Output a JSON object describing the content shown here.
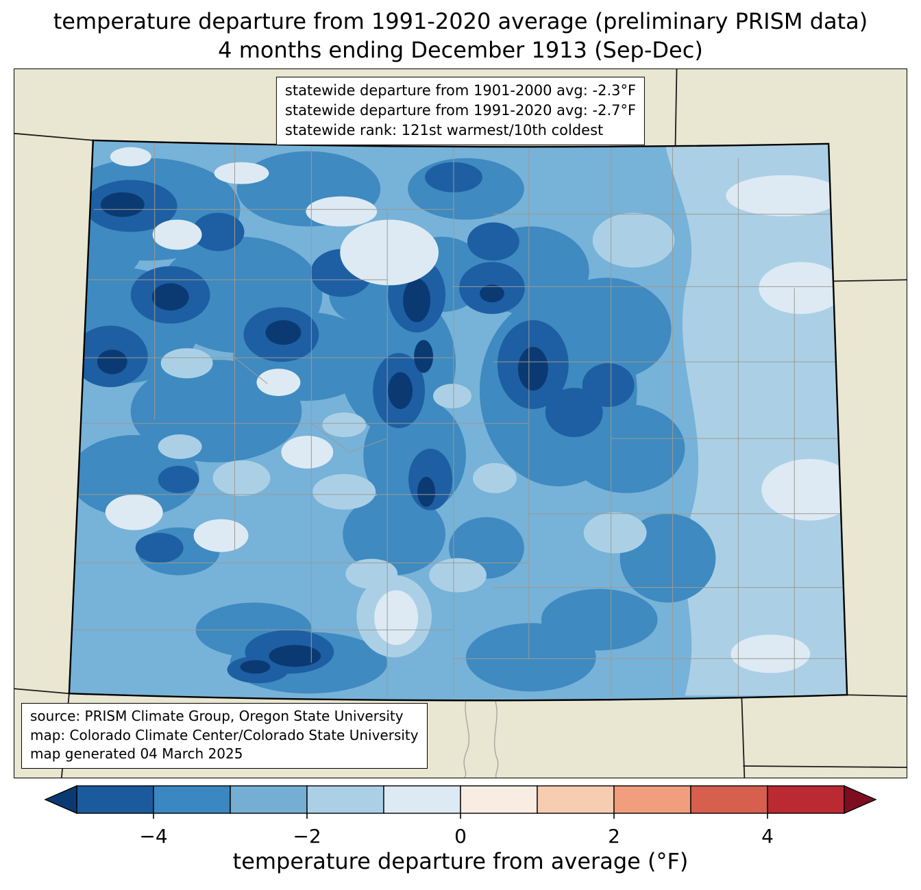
{
  "title": {
    "line1": "temperature departure from 1991-2020 average (preliminary PRISM data)",
    "line2": "4 months ending December 1913 (Sep-Dec)"
  },
  "stats_box": {
    "line1": "statewide departure from 1901-2000 avg: -2.3°F",
    "line2": "statewide departure from 1991-2020 avg: -2.7°F",
    "line3": "statewide rank: 121st warmest/10th coldest"
  },
  "source_box": {
    "line1": "source: PRISM Climate Group, Oregon State University",
    "line2": "map: Colorado Climate Center/Colorado State University",
    "line3": "map generated 04 March 2025"
  },
  "colorbar": {
    "label": "temperature departure from average (°F)",
    "min": -5,
    "max": 5,
    "ticks": [
      {
        "value": -4,
        "label": "−4"
      },
      {
        "value": -2,
        "label": "−2"
      },
      {
        "value": 0,
        "label": "0"
      },
      {
        "value": 2,
        "label": "2"
      },
      {
        "value": 4,
        "label": "4"
      }
    ],
    "segments": [
      "#1c5a9e",
      "#3a87c2",
      "#74afd3",
      "#abd0e6",
      "#ddeaf4",
      "#f9ece2",
      "#f7cdb2",
      "#f09e7e",
      "#d75f4e",
      "#bb2a33"
    ],
    "arrow_left_color": "#0b3a73",
    "arrow_right_color": "#7f0d22"
  },
  "map": {
    "region": "Colorado",
    "background_color": "#e9e6d1",
    "state_border_color": "#000000",
    "county_line_color": "#9b9b93",
    "palette": {
      "darkest": "#0b3a73",
      "dark": "#1e5fa3",
      "medium_dark": "#3f8ac0",
      "medium": "#77b2d8",
      "light": "#abd0e6",
      "pale": "#ddeaf4",
      "palest": "#eef5fa"
    }
  }
}
